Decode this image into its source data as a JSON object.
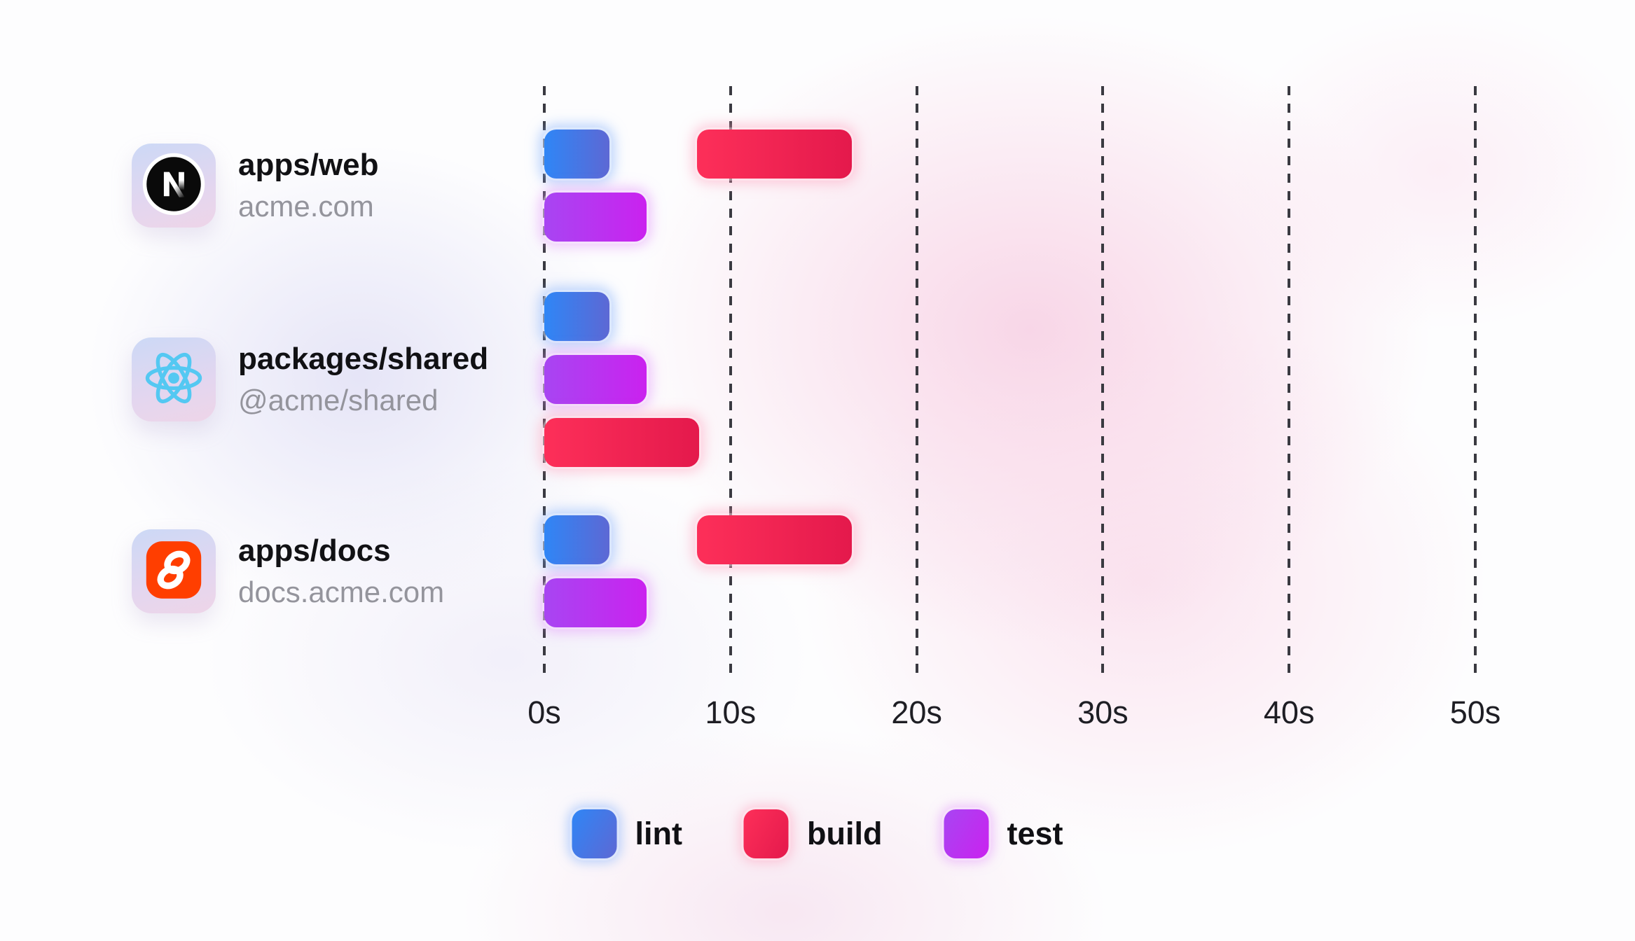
{
  "chart_data": {
    "type": "gantt",
    "title": "",
    "time_unit": "seconds",
    "x_ticks": [
      {
        "label": "0s",
        "value": 0
      },
      {
        "label": "10s",
        "value": 10
      },
      {
        "label": "20s",
        "value": 20
      },
      {
        "label": "30s",
        "value": 30
      },
      {
        "label": "40s",
        "value": 40
      },
      {
        "label": "50s",
        "value": 50
      }
    ],
    "x_range": [
      0,
      50
    ],
    "grid": "dashed-vertical",
    "legend_position": "bottom-center",
    "tasks": {
      "lint": {
        "color_start": "#2F86F6",
        "color_end": "#5D68D4",
        "glow": "rgba(130,175,252,0.55)"
      },
      "build": {
        "color_start": "#FD2F59",
        "color_end": "#E4194C",
        "glow": "rgba(255,155,185,0.50)"
      },
      "test": {
        "color_start": "#A845F2",
        "color_end": "#CA22EF",
        "glow": "rgba(226,150,250,0.55)"
      }
    },
    "rows": [
      {
        "package": "apps/web",
        "subtitle": "acme.com",
        "icon": "nextjs-icon",
        "lanes": [
          [
            {
              "task": "lint",
              "start": 0,
              "end": 3.5
            },
            {
              "task": "build",
              "start": 8.2,
              "end": 16.5
            }
          ],
          [
            {
              "task": "test",
              "start": 0,
              "end": 5.5
            }
          ]
        ]
      },
      {
        "package": "packages/shared",
        "subtitle": "@acme/shared",
        "icon": "react-icon",
        "lanes": [
          [
            {
              "task": "lint",
              "start": 0,
              "end": 3.5
            }
          ],
          [
            {
              "task": "test",
              "start": 0,
              "end": 5.5
            }
          ],
          [
            {
              "task": "build",
              "start": 0,
              "end": 8.3
            }
          ]
        ]
      },
      {
        "package": "apps/docs",
        "subtitle": "docs.acme.com",
        "icon": "svelte-icon",
        "lanes": [
          [
            {
              "task": "lint",
              "start": 0,
              "end": 3.5
            },
            {
              "task": "build",
              "start": 8.2,
              "end": 16.5
            }
          ],
          [
            {
              "task": "test",
              "start": 0,
              "end": 5.5
            }
          ]
        ]
      }
    ],
    "legend": [
      {
        "label": "lint",
        "task": "lint"
      },
      {
        "label": "build",
        "task": "build"
      },
      {
        "label": "test",
        "task": "test"
      }
    ]
  },
  "colors": {
    "background_base": "#fdfdfe",
    "blob_pink": "#f8d4e6",
    "blob_lavender": "#e3e2f6",
    "gridline": "#3a3a41",
    "axis_label": "#1e1e24",
    "row_title": "#111114",
    "row_subtitle": "#94949c",
    "legend_label": "#101014",
    "icon_tile_gradient_start": "#ccd9f6",
    "icon_tile_gradient_end": "#eed5e8",
    "nextjs_black": "#0a0a0a",
    "react_blue": "#54c8f2",
    "svelte_orange": "#ff3e00"
  }
}
